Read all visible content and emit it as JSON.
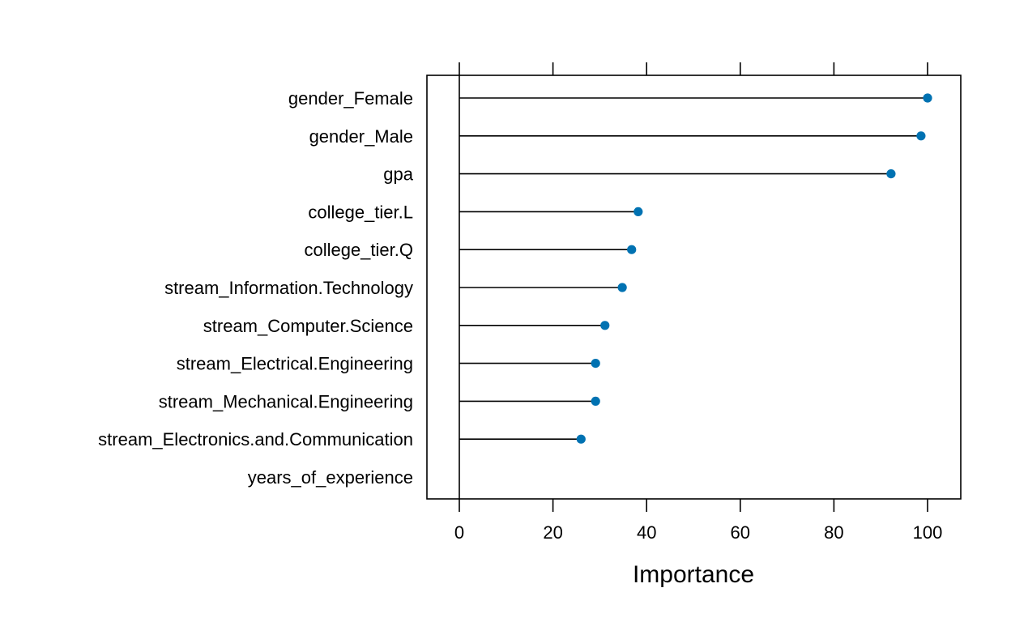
{
  "chart_data": {
    "type": "lollipop",
    "title": "",
    "xlabel": "Importance",
    "ylabel": "",
    "xlim": [
      -7,
      107
    ],
    "xticks": [
      0,
      20,
      40,
      60,
      80,
      100
    ],
    "xtick_labels": [
      "0",
      "20",
      "40",
      "60",
      "80",
      "100"
    ],
    "orientation": "horizontal",
    "grid": false,
    "legend": "none",
    "colors": {
      "point": "#0072b2",
      "line": "#000000",
      "frame": "#000000"
    },
    "categories": [
      "gender_Female",
      "gender_Male",
      "gpa",
      "college_tier.L",
      "college_tier.Q",
      "stream_Information.Technology",
      "stream_Computer.Science",
      "stream_Electrical.Engineering",
      "stream_Mechanical.Engineering",
      "stream_Electronics.and.Communication",
      "years_of_experience"
    ],
    "values": [
      100,
      98.6,
      92.2,
      38.2,
      36.8,
      34.8,
      31.1,
      29.1,
      29.1,
      26.0,
      0
    ]
  }
}
